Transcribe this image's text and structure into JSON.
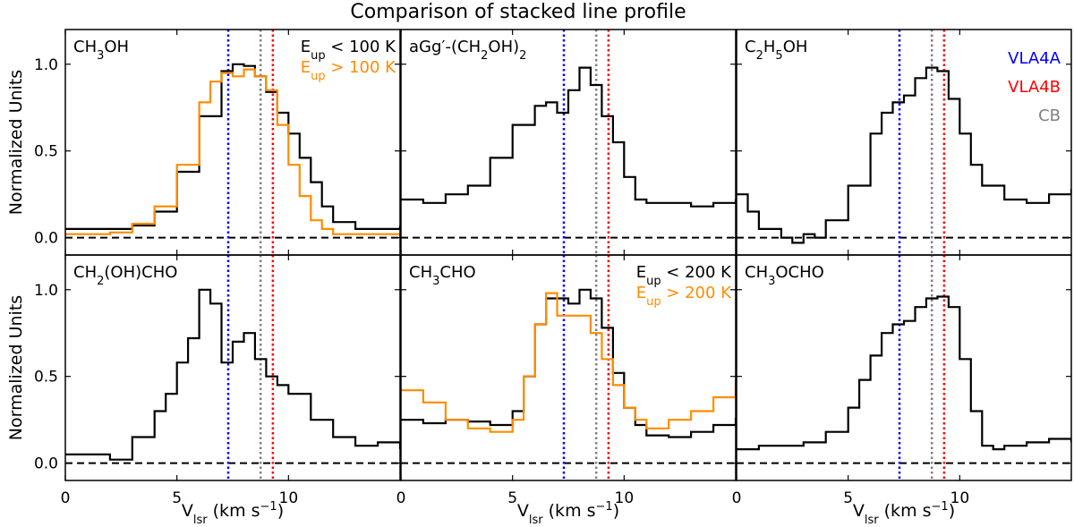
{
  "figure_title": "Comparison of stacked line profile",
  "y_axis_label": "Normalized Units",
  "x_axis_label": "V",
  "x_axis_label_sub": "lsr",
  "x_axis_label_unit": " (km s",
  "x_axis_label_exp": "−1",
  "x_axis_label_close": ")",
  "colors": {
    "low": "#000000",
    "high": "#ff8c00",
    "vla4a": "#0000ff",
    "vla4b": "#ff0000",
    "cb": "#808080"
  },
  "reference_lines": [
    {
      "name": "VLA4A",
      "x": 7.3,
      "color": "#0000ff"
    },
    {
      "name": "CB",
      "x": 8.75,
      "color": "#808080"
    },
    {
      "name": "VLA4B",
      "x": 9.3,
      "color": "#ff0000"
    }
  ],
  "chart_data": [
    {
      "type": "line",
      "panel": "CH3OH",
      "title": "CH3OH",
      "xlim": [
        0,
        15
      ],
      "ylim": [
        -0.1,
        1.2
      ],
      "xticks": [
        "0",
        "5",
        "10"
      ],
      "yticks": [
        "0.0",
        "0.5",
        "1.0"
      ],
      "legend": [
        "E_up < 100 K",
        "E_up > 100 K"
      ],
      "series": [
        {
          "name": "E_up < 100 K",
          "x": [
            0,
            1,
            2,
            3,
            4,
            5,
            6,
            7,
            7.5,
            8,
            8.5,
            9,
            9.5,
            10,
            10.5,
            11,
            11.5,
            12,
            13,
            14,
            15
          ],
          "y": [
            0.05,
            0.05,
            0.05,
            0.07,
            0.15,
            0.38,
            0.7,
            0.96,
            1.0,
            0.99,
            0.93,
            0.84,
            0.72,
            0.6,
            0.46,
            0.32,
            0.18,
            0.09,
            0.05,
            0.05,
            0.07
          ]
        },
        {
          "name": "E_up > 100 K",
          "x": [
            0,
            1,
            2,
            3,
            4,
            5,
            6,
            6.5,
            7,
            7.5,
            8,
            8.5,
            9,
            9.5,
            10,
            10.5,
            11,
            11.5,
            12,
            13,
            14,
            15
          ],
          "y": [
            0.02,
            0.02,
            0.03,
            0.08,
            0.18,
            0.42,
            0.78,
            0.9,
            0.95,
            0.93,
            0.97,
            0.93,
            0.85,
            0.65,
            0.42,
            0.24,
            0.1,
            0.05,
            0.02,
            0.02,
            0.02,
            0.0
          ]
        }
      ]
    },
    {
      "type": "line",
      "panel": "aGg'-(CH2OH)2",
      "title": "aGg′-(CH2OH)2",
      "xlim": [
        0,
        15
      ],
      "ylim": [
        -0.1,
        1.2
      ],
      "xticks": [
        "0",
        "5",
        "10"
      ],
      "yticks": [
        "0.0",
        "0.5",
        "1.0"
      ],
      "series": [
        {
          "name": "",
          "x": [
            0,
            1,
            2,
            3,
            4,
            5,
            6,
            6.5,
            7,
            7.5,
            8,
            8.5,
            9,
            9.5,
            10,
            10.5,
            11,
            12,
            13,
            14,
            15
          ],
          "y": [
            0.22,
            0.2,
            0.25,
            0.3,
            0.46,
            0.65,
            0.76,
            0.78,
            0.72,
            0.85,
            0.98,
            0.88,
            0.7,
            0.55,
            0.35,
            0.22,
            0.2,
            0.2,
            0.18,
            0.2,
            0.22
          ]
        }
      ]
    },
    {
      "type": "line",
      "panel": "C2H5OH",
      "title": "C2H5OH",
      "xlim": [
        0,
        15
      ],
      "ylim": [
        -0.1,
        1.2
      ],
      "xticks": [
        "0",
        "5",
        "10"
      ],
      "yticks": [
        "0.0",
        "0.5",
        "1.0"
      ],
      "series": [
        {
          "name": "",
          "x": [
            0,
            0.5,
            1,
            2,
            2.5,
            3,
            3.5,
            4,
            5,
            6,
            6.5,
            7,
            7.5,
            8,
            8.5,
            9,
            9.5,
            10,
            10.5,
            11,
            12,
            13,
            14,
            15
          ],
          "y": [
            0.25,
            0.15,
            0.05,
            0.0,
            -0.03,
            0.02,
            0.0,
            0.1,
            0.3,
            0.6,
            0.72,
            0.78,
            0.82,
            0.92,
            0.98,
            0.96,
            0.8,
            0.6,
            0.42,
            0.3,
            0.22,
            0.2,
            0.25,
            0.28
          ]
        }
      ]
    },
    {
      "type": "line",
      "panel": "CH2(OH)CHO",
      "title": "CH2(OH)CHO",
      "xlim": [
        0,
        15
      ],
      "ylim": [
        -0.1,
        1.2
      ],
      "xticks": [
        "0",
        "5",
        "10"
      ],
      "yticks": [
        "0.0",
        "0.5",
        "1.0"
      ],
      "series": [
        {
          "name": "",
          "x": [
            0,
            1,
            2,
            3,
            4,
            4.5,
            5,
            5.5,
            6,
            6.5,
            7,
            7.5,
            8,
            8.5,
            9,
            9.5,
            10,
            11,
            12,
            13,
            14,
            15
          ],
          "y": [
            0.05,
            0.05,
            0.02,
            0.15,
            0.3,
            0.4,
            0.58,
            0.72,
            1.0,
            0.92,
            0.58,
            0.7,
            0.75,
            0.6,
            0.5,
            0.45,
            0.4,
            0.25,
            0.15,
            0.1,
            0.12,
            0.08
          ]
        }
      ]
    },
    {
      "type": "line",
      "panel": "CH3CHO",
      "title": "CH3CHO",
      "xlim": [
        0,
        15
      ],
      "ylim": [
        -0.1,
        1.2
      ],
      "xticks": [
        "0",
        "5",
        "10"
      ],
      "yticks": [
        "0.0",
        "0.5",
        "1.0"
      ],
      "legend": [
        "E_up < 200 K",
        "E_up > 200 K"
      ],
      "series": [
        {
          "name": "E_up < 200 K",
          "x": [
            0,
            1,
            2,
            3,
            4,
            5,
            5.5,
            6,
            6.5,
            7,
            7.5,
            8,
            8.5,
            9,
            9.5,
            10,
            10.5,
            11,
            12,
            13,
            14,
            15
          ],
          "y": [
            0.25,
            0.23,
            0.25,
            0.24,
            0.22,
            0.3,
            0.5,
            0.8,
            0.95,
            0.95,
            0.92,
            1.0,
            0.95,
            0.78,
            0.52,
            0.32,
            0.22,
            0.16,
            0.15,
            0.18,
            0.22,
            0.26
          ]
        },
        {
          "name": "E_up > 200 K",
          "x": [
            0,
            1,
            2,
            3,
            4,
            5,
            5.5,
            6,
            6.5,
            7,
            7.5,
            8,
            8.5,
            9,
            9.5,
            10,
            10.5,
            11,
            12,
            13,
            14,
            15
          ],
          "y": [
            0.42,
            0.35,
            0.25,
            0.2,
            0.18,
            0.25,
            0.5,
            0.8,
            0.98,
            0.85,
            0.85,
            0.85,
            0.75,
            0.6,
            0.45,
            0.32,
            0.25,
            0.2,
            0.25,
            0.3,
            0.38,
            0.48
          ]
        }
      ]
    },
    {
      "type": "line",
      "panel": "CH3OCHO",
      "title": "CH3OCHO",
      "xlim": [
        0,
        15
      ],
      "ylim": [
        -0.1,
        1.2
      ],
      "xticks": [
        "0",
        "5",
        "10"
      ],
      "yticks": [
        "0.0",
        "0.5",
        "1.0"
      ],
      "series": [
        {
          "name": "",
          "x": [
            0,
            1,
            2,
            3,
            4,
            5,
            5.5,
            6,
            6.5,
            7,
            7.5,
            8,
            8.5,
            9,
            9.5,
            10,
            10.5,
            11,
            11.5,
            12,
            13,
            14,
            15
          ],
          "y": [
            0.08,
            0.1,
            0.1,
            0.12,
            0.18,
            0.32,
            0.48,
            0.62,
            0.75,
            0.8,
            0.82,
            0.9,
            0.95,
            0.96,
            0.9,
            0.6,
            0.3,
            0.1,
            0.08,
            0.1,
            0.12,
            0.14,
            0.12
          ]
        }
      ]
    }
  ]
}
